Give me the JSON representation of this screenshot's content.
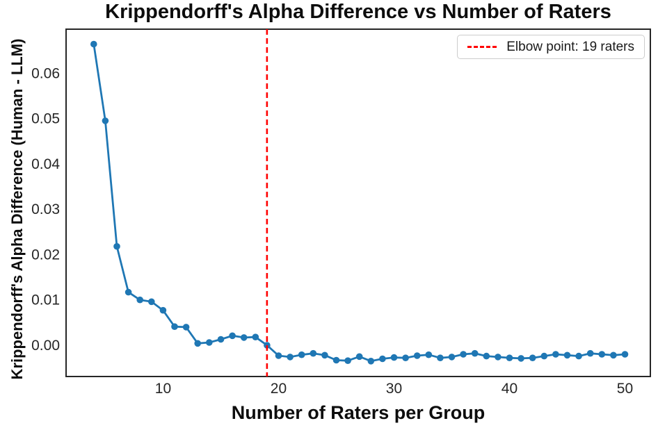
{
  "chart_data": {
    "type": "line",
    "title": "Krippendorff's Alpha Difference vs Number of Raters",
    "xlabel": "Number of Raters per Group",
    "ylabel": "Krippendorff's Alpha Difference (Human - LLM)",
    "grid": false,
    "xlim": [
      1.6,
      52.2
    ],
    "ylim": [
      -0.0069,
      0.0697
    ],
    "x_ticks": [
      10,
      20,
      30,
      40,
      50
    ],
    "y_ticks": [
      0,
      0.01,
      0.02,
      0.03,
      0.04,
      0.05,
      0.06
    ],
    "y_tick_labels": [
      "0.00",
      "0.01",
      "0.02",
      "0.03",
      "0.04",
      "0.05",
      "0.06"
    ],
    "series": [
      {
        "name": "alpha-difference-human-minus-llm",
        "color": "#1f77b4",
        "marker": "circle",
        "line_style": "solid",
        "x": [
          4,
          5,
          6,
          7,
          8,
          9,
          10,
          11,
          12,
          13,
          14,
          15,
          16,
          17,
          18,
          19,
          20,
          21,
          22,
          23,
          24,
          25,
          26,
          27,
          28,
          29,
          30,
          31,
          32,
          33,
          34,
          35,
          36,
          37,
          38,
          39,
          40,
          41,
          42,
          43,
          44,
          45,
          46,
          47,
          48,
          49,
          50
        ],
        "y": [
          0.0664,
          0.0495,
          0.0218,
          0.0117,
          0.01,
          0.0096,
          0.0077,
          0.0041,
          0.004,
          0.0004,
          0.0006,
          0.0013,
          0.0021,
          0.0017,
          0.0018,
          0.0,
          -0.0023,
          -0.0026,
          -0.0021,
          -0.0018,
          -0.0022,
          -0.0033,
          -0.0034,
          -0.0025,
          -0.0035,
          -0.003,
          -0.0027,
          -0.0028,
          -0.0023,
          -0.0021,
          -0.0028,
          -0.0026,
          -0.002,
          -0.0018,
          -0.0024,
          -0.0026,
          -0.0028,
          -0.0029,
          -0.0028,
          -0.0024,
          -0.002,
          -0.0022,
          -0.0024,
          -0.0018,
          -0.002,
          -0.0022,
          -0.002
        ]
      }
    ],
    "annotations": [
      {
        "type": "vline",
        "x": 19,
        "color": "#ff0000",
        "style": "dashed"
      }
    ],
    "legend": {
      "position": "upper right",
      "entries": [
        {
          "label": "Elbow point: 19 raters",
          "color": "#ff0000",
          "style": "dashed"
        }
      ]
    },
    "styles": {
      "spine_color": "#262626",
      "tick_color": "#262626",
      "title_color": "#0d0d0d",
      "background": "#ffffff",
      "legend_border": "#cccccc"
    }
  }
}
